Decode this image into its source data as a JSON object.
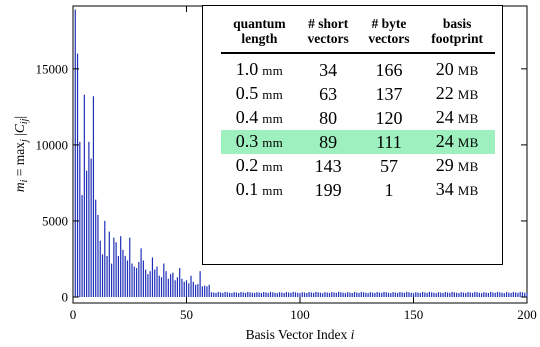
{
  "chart_data": {
    "type": "bar",
    "xlabel": "Basis Vector Index i",
    "ylabel": "m_i = max_j |C_ij|",
    "xlim": [
      0,
      200
    ],
    "ylim": [
      0,
      19000
    ],
    "xticks": [
      "0",
      "50",
      "100",
      "150",
      "200"
    ],
    "yticks": [
      "0",
      "5000",
      "10000",
      "15000"
    ],
    "bar_color": "#1f2fb8",
    "series": [
      {
        "x": [
          1,
          2,
          3,
          4,
          5,
          6,
          7,
          8,
          9,
          10,
          11,
          12,
          13,
          14,
          15,
          16,
          17,
          18,
          19,
          20,
          21,
          22,
          23,
          24,
          25,
          26,
          27,
          28,
          29,
          30,
          31,
          32,
          33,
          34,
          35,
          36,
          37,
          38,
          39,
          40,
          41,
          42,
          43,
          44,
          45,
          46,
          47,
          48,
          49,
          50,
          51,
          52,
          53,
          54,
          55,
          56,
          57,
          58,
          59,
          60
        ],
        "values": [
          18900,
          16000,
          10200,
          6700,
          13300,
          8300,
          10200,
          9100,
          13200,
          6400,
          5400,
          3700,
          2800,
          5000,
          2700,
          4300,
          2200,
          3900,
          3600,
          2700,
          4000,
          3100,
          2700,
          2400,
          3900,
          2200,
          2000,
          1900,
          2300,
          3200,
          2400,
          1800,
          1500,
          1700,
          2600,
          1800,
          2000,
          1400,
          1300,
          2200,
          1700,
          1200,
          1500,
          1600,
          1100,
          1300,
          1900,
          1200,
          1000,
          1100,
          900,
          1400,
          1000,
          800,
          850,
          1700,
          700,
          750,
          700,
          800
        ]
      }
    ],
    "tail_level_approx": 300
  },
  "table": {
    "headers": [
      {
        "line1": "quantum",
        "line2": "length"
      },
      {
        "line1": "# short",
        "line2": "vectors"
      },
      {
        "line1": "# byte",
        "line2": "vectors"
      },
      {
        "line1": "basis",
        "line2": "footprint"
      }
    ],
    "rows": [
      {
        "quantum": "1.0",
        "quantum_unit": "mm",
        "short": "34",
        "byte": "166",
        "footprint": "20",
        "footprint_unit": "MB",
        "highlight": false
      },
      {
        "quantum": "0.5",
        "quantum_unit": "mm",
        "short": "63",
        "byte": "137",
        "footprint": "22",
        "footprint_unit": "MB",
        "highlight": false
      },
      {
        "quantum": "0.4",
        "quantum_unit": "mm",
        "short": "80",
        "byte": "120",
        "footprint": "24",
        "footprint_unit": "MB",
        "highlight": false
      },
      {
        "quantum": "0.3",
        "quantum_unit": "mm",
        "short": "89",
        "byte": "111",
        "footprint": "24",
        "footprint_unit": "MB",
        "highlight": true
      },
      {
        "quantum": "0.2",
        "quantum_unit": "mm",
        "short": "143",
        "byte": "57",
        "footprint": "29",
        "footprint_unit": "MB",
        "highlight": false
      },
      {
        "quantum": "0.1",
        "quantum_unit": "mm",
        "short": "199",
        "byte": "1",
        "footprint": "34",
        "footprint_unit": "MB",
        "highlight": false
      }
    ],
    "highlight_color": "#9ef0bf"
  }
}
